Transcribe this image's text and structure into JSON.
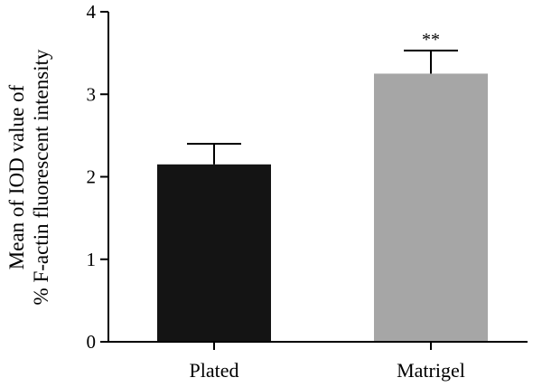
{
  "chart_data": {
    "type": "bar",
    "categories": [
      "Plated",
      "Matrigel"
    ],
    "values": [
      2.15,
      3.25
    ],
    "error": [
      0.25,
      0.28
    ],
    "colors": [
      "#141414",
      "#a6a6a6"
    ],
    "annotations": [
      "",
      "**"
    ],
    "ylabel": [
      "Mean of IOD value of",
      "% F-actin fluorescent intensity"
    ],
    "xlabel": "",
    "ylim": [
      0,
      4
    ],
    "yticks": [
      0,
      1,
      2,
      3,
      4
    ],
    "grid": false
  }
}
